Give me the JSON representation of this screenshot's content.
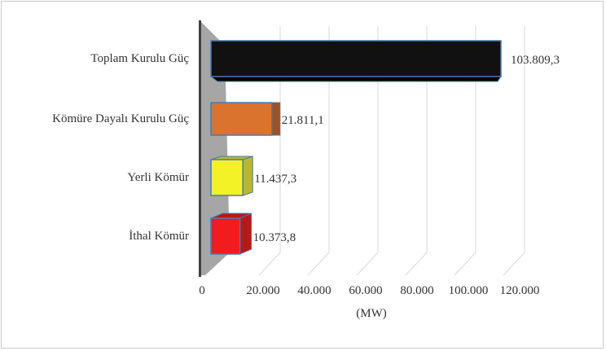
{
  "chart_data": {
    "type": "bar",
    "orientation": "horizontal",
    "style": "3d",
    "categories": [
      "Toplam Kurulu Güç",
      "Kömüre Dayalı Kurulu Güç",
      "Yerli Kömür",
      "İthal Kömür"
    ],
    "values": [
      103809.3,
      21811.1,
      11437.3,
      10373.8
    ],
    "value_labels": [
      "103.809,3",
      "21.811,1",
      "11.437,3",
      "10.373,8"
    ],
    "colors": [
      "#111111",
      "#d9732e",
      "#f2f226",
      "#f21c1c"
    ],
    "side_colors": [
      "#000000",
      "#9c5226",
      "#b8b830",
      "#b81818"
    ],
    "xlabel": "(MW)",
    "ylabel": "",
    "title": "",
    "xlim": [
      0,
      120000
    ],
    "xticks": [
      0,
      20000,
      40000,
      60000,
      80000,
      100000,
      120000
    ],
    "xtick_labels": [
      "0",
      "20.000",
      "40.000",
      "60.000",
      "80.000",
      "100.000",
      "120.000"
    ],
    "grid": true,
    "legend": "none"
  }
}
